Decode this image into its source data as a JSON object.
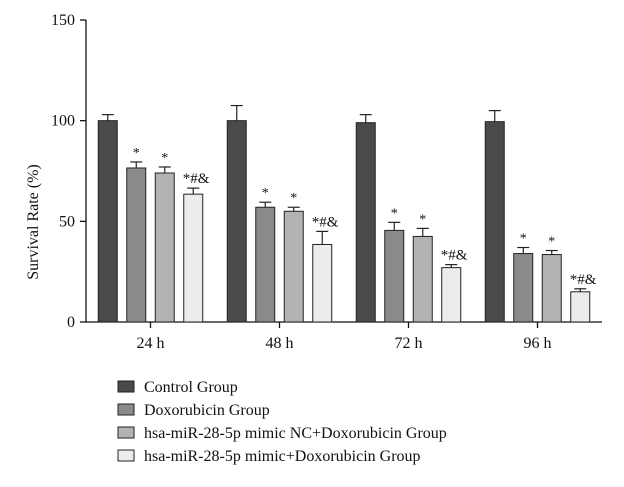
{
  "chart_data": {
    "type": "bar",
    "title": "",
    "xlabel": "",
    "ylabel": "Survival Rate (%)",
    "ylim": [
      0,
      150
    ],
    "yticks": [
      0,
      50,
      100,
      150
    ],
    "categories": [
      "24 h",
      "48 h",
      "72 h",
      "96 h"
    ],
    "legend_position": "bottom-left",
    "grid": false,
    "series": [
      {
        "name": "Control Group",
        "color": "#4a4a4a",
        "values": [
          100,
          100,
          99,
          99.5
        ],
        "errors": [
          3,
          7.5,
          4,
          5.5
        ],
        "annotations": [
          "",
          "",
          "",
          ""
        ]
      },
      {
        "name": "Doxorubicin Group",
        "color": "#8a8a8a",
        "values": [
          76.5,
          57,
          45.5,
          34
        ],
        "errors": [
          3,
          2.5,
          4,
          3
        ],
        "annotations": [
          "*",
          "*",
          "*",
          "*"
        ]
      },
      {
        "name": "hsa-miR-28-5p mimic NC+Doxorubicin Group",
        "color": "#b3b3b3",
        "values": [
          74,
          55,
          42.5,
          33.5
        ],
        "errors": [
          3,
          2,
          4,
          2
        ],
        "annotations": [
          "*",
          "*",
          "*",
          "*"
        ]
      },
      {
        "name": "hsa-miR-28-5p mimic+Doxorubicin Group",
        "color": "#ececec",
        "values": [
          63.5,
          38.5,
          27,
          15
        ],
        "errors": [
          3,
          6.5,
          1.5,
          1.5
        ],
        "annotations": [
          "*#&",
          "*#&",
          "*#&",
          "*#&"
        ]
      }
    ]
  }
}
